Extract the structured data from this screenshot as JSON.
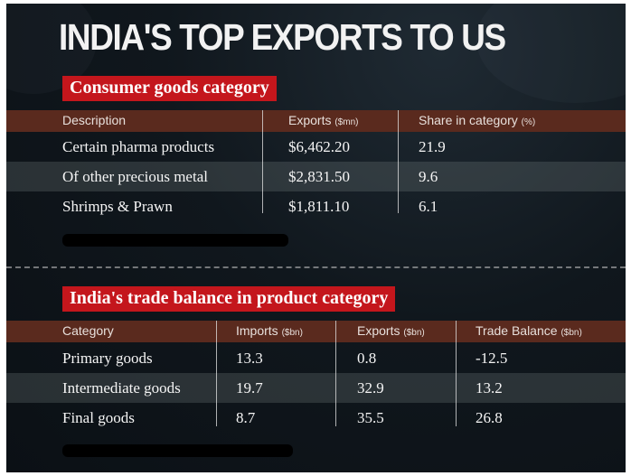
{
  "title": "INDIA'S TOP EXPORTS TO US",
  "consumer_section": {
    "tag": "Consumer goods category",
    "headers": {
      "description": "Description",
      "exports": "Exports",
      "exports_unit": "($mn)",
      "share": "Share in category",
      "share_unit": "(%)"
    },
    "rows": [
      {
        "description": "Certain pharma products",
        "exports": "$6,462.20",
        "share": "21.9"
      },
      {
        "description": "Of other precious metal",
        "exports": "$2,831.50",
        "share": "9.6"
      },
      {
        "description": "Shrimps & Prawn",
        "exports": "$1,811.10",
        "share": "6.1"
      }
    ]
  },
  "trade_section": {
    "tag": "India's trade balance in product category",
    "headers": {
      "category": "Category",
      "imports": "Imports",
      "imports_unit": "($bn)",
      "exports": "Exports",
      "exports_unit": "($bn)",
      "balance": "Trade Balance",
      "balance_unit": "($bn)"
    },
    "rows": [
      {
        "category": "Primary goods",
        "imports": "13.3",
        "exports": "0.8",
        "balance": "-12.5"
      },
      {
        "category": "Intermediate goods",
        "imports": "19.7",
        "exports": "32.9",
        "balance": "13.2"
      },
      {
        "category": "Final goods",
        "imports": "8.7",
        "exports": "35.5",
        "balance": "26.8"
      }
    ]
  },
  "chart_data": [
    {
      "type": "table",
      "title": "Consumer goods category",
      "columns": [
        "Description",
        "Exports ($mn)",
        "Share in category (%)"
      ],
      "rows": [
        [
          "Certain pharma products",
          6462.2,
          21.9
        ],
        [
          "Of other precious metal",
          2831.5,
          9.6
        ],
        [
          "Shrimps & Prawn",
          1811.1,
          6.1
        ]
      ]
    },
    {
      "type": "table",
      "title": "India's trade balance in product category",
      "columns": [
        "Category",
        "Imports ($bn)",
        "Exports ($bn)",
        "Trade Balance ($bn)"
      ],
      "rows": [
        [
          "Primary goods",
          13.3,
          0.8,
          -12.5
        ],
        [
          "Intermediate goods",
          19.7,
          32.9,
          13.2
        ],
        [
          "Final goods",
          8.7,
          35.5,
          26.8
        ]
      ]
    }
  ]
}
